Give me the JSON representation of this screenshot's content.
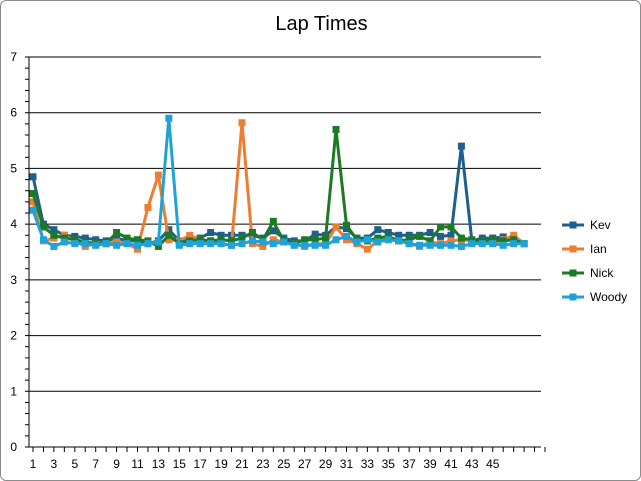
{
  "chart_data": {
    "type": "line",
    "title": "Lap Times",
    "xlabel": "",
    "ylabel": "",
    "ylim": [
      0,
      7
    ],
    "yticks": [
      0,
      1,
      2,
      3,
      4,
      5,
      6,
      7
    ],
    "xlim": [
      1,
      50
    ],
    "xtick_labels": [
      "1",
      "3",
      "5",
      "7",
      "9",
      "11",
      "13",
      "15",
      "17",
      "19",
      "21",
      "23",
      "25",
      "27",
      "29",
      "31",
      "33",
      "35",
      "37",
      "39",
      "41",
      "43",
      "45"
    ],
    "grid": true,
    "legend_position": "right",
    "series": [
      {
        "name": "Kev",
        "color": "#1f5f8b",
        "values": [
          4.85,
          4.0,
          3.9,
          3.8,
          3.78,
          3.75,
          3.72,
          3.7,
          3.75,
          3.7,
          3.7,
          3.65,
          3.7,
          3.9,
          3.7,
          3.72,
          3.75,
          3.85,
          3.8,
          3.8,
          3.8,
          3.8,
          3.75,
          3.88,
          3.75,
          3.7,
          3.7,
          3.82,
          3.8,
          3.95,
          3.92,
          3.75,
          3.75,
          3.9,
          3.85,
          3.8,
          3.8,
          3.8,
          3.85,
          3.78,
          3.8,
          5.4,
          3.7,
          3.75,
          3.75,
          3.77,
          3.7,
          3.65
        ]
      },
      {
        "name": "Ian",
        "color": "#ed7d31",
        "values": [
          4.4,
          3.7,
          3.75,
          3.8,
          3.7,
          3.6,
          3.65,
          3.65,
          3.68,
          3.65,
          3.55,
          4.3,
          4.88,
          3.72,
          3.7,
          3.8,
          3.72,
          3.7,
          3.65,
          3.62,
          5.82,
          3.65,
          3.6,
          3.72,
          3.68,
          3.65,
          3.6,
          3.65,
          3.65,
          3.95,
          3.72,
          3.65,
          3.55,
          3.7,
          3.72,
          3.7,
          3.65,
          3.6,
          3.68,
          3.65,
          3.7,
          3.72,
          3.7,
          3.68,
          3.65,
          3.72,
          3.8,
          3.65
        ]
      },
      {
        "name": "Nick",
        "color": "#1c7a25",
        "values": [
          4.55,
          3.95,
          3.8,
          3.75,
          3.72,
          3.68,
          3.65,
          3.65,
          3.85,
          3.75,
          3.72,
          3.7,
          3.6,
          3.8,
          3.65,
          3.7,
          3.72,
          3.7,
          3.72,
          3.7,
          3.75,
          3.85,
          3.72,
          4.05,
          3.7,
          3.65,
          3.72,
          3.72,
          3.75,
          5.7,
          3.98,
          3.72,
          3.7,
          3.75,
          3.78,
          3.7,
          3.72,
          3.78,
          3.7,
          3.95,
          3.95,
          3.75,
          3.72,
          3.7,
          3.72,
          3.7,
          3.72,
          3.65
        ]
      },
      {
        "name": "Woody",
        "color": "#1fa2d8",
        "values": [
          4.25,
          3.72,
          3.6,
          3.68,
          3.65,
          3.65,
          3.62,
          3.65,
          3.62,
          3.65,
          3.62,
          3.65,
          3.68,
          5.9,
          3.62,
          3.65,
          3.65,
          3.65,
          3.65,
          3.62,
          3.65,
          3.7,
          3.68,
          3.65,
          3.68,
          3.62,
          3.62,
          3.62,
          3.62,
          3.72,
          3.78,
          3.68,
          3.72,
          3.68,
          3.72,
          3.7,
          3.65,
          3.62,
          3.62,
          3.62,
          3.62,
          3.6,
          3.65,
          3.65,
          3.65,
          3.62,
          3.65,
          3.65
        ]
      }
    ]
  }
}
